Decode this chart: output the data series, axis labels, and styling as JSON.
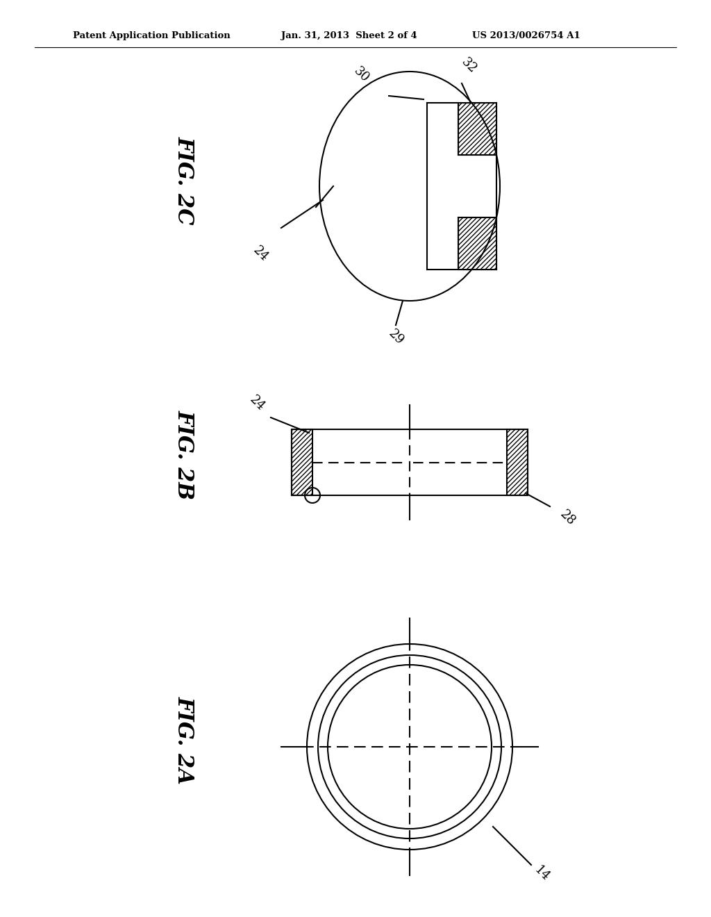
{
  "bg_color": "#ffffff",
  "line_color": "#000000",
  "header_left": "Patent Application Publication",
  "header_mid": "Jan. 31, 2013  Sheet 2 of 4",
  "header_right": "US 2013/0026754 A1",
  "fig2a_label": "FIG. 2A",
  "fig2b_label": "FIG. 2B",
  "fig2c_label": "FIG. 2C",
  "label_14": "14",
  "label_24b": "24",
  "label_28": "28",
  "label_24c": "24",
  "label_29": "29",
  "label_30": "30",
  "label_32": "32"
}
